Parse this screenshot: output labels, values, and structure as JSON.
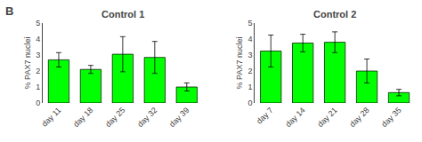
{
  "chart_data": [
    {
      "type": "bar",
      "title": "Control 1",
      "annotation": "B",
      "categories": [
        "day 11",
        "day 18",
        "day 25",
        "day 32",
        "day 39"
      ],
      "values": [
        2.7,
        2.1,
        3.05,
        2.85,
        1.0
      ],
      "errors": [
        0.45,
        0.25,
        1.1,
        1.0,
        0.25
      ],
      "color": "#00FF00",
      "ylabel": "% PAX7 nuclei",
      "ylim": [
        0,
        5
      ],
      "yticks": [
        0,
        1,
        2,
        3,
        4,
        5
      ],
      "grid": false
    },
    {
      "type": "bar",
      "title": "Control 2",
      "categories": [
        "day 7",
        "day 14",
        "day 21",
        "day 28",
        "day 35"
      ],
      "values": [
        3.25,
        3.75,
        3.8,
        2.0,
        0.65
      ],
      "errors": [
        1.0,
        0.55,
        0.65,
        0.75,
        0.2
      ],
      "color": "#00FF00",
      "ylabel": "% PAX7 nuclei",
      "ylim": [
        0,
        5
      ],
      "yticks": [
        0,
        1,
        2,
        3,
        4,
        5
      ],
      "grid": false
    }
  ]
}
